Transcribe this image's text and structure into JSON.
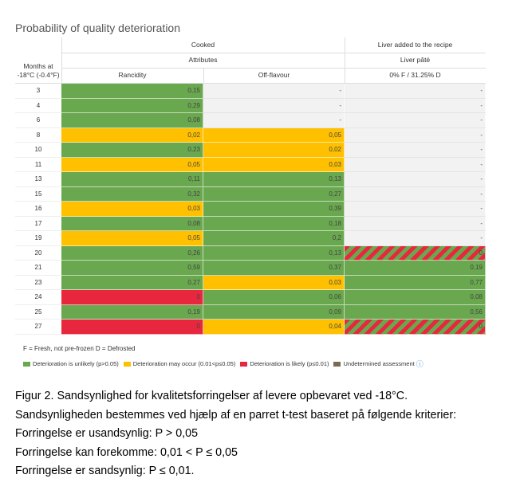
{
  "title": "Probability of quality deterioration",
  "header": {
    "months_label_1": "Months at",
    "months_label_2": "-18°C (-0.4°F)",
    "cooked": "Cooked",
    "attributes": "Attributes",
    "rancidity": "Rancidity",
    "off_flavour": "Off-flavour",
    "liver_added": "Liver added to the recipe",
    "liver_pate": "Liver pâté",
    "liver_pate_sub": "0% F / 31.25% D"
  },
  "colors": {
    "green": "#6aa84f",
    "yellow": "#ffc000",
    "red": "#e8273e",
    "undetermined": "#7a6a4f",
    "empty": "#f2f2f2"
  },
  "rows": [
    {
      "month": "3",
      "r": {
        "v": "0,15",
        "c": "green"
      },
      "o": {
        "v": "-",
        "c": "empty"
      },
      "l": {
        "v": "-",
        "c": "empty"
      }
    },
    {
      "month": "4",
      "r": {
        "v": "0,29",
        "c": "green"
      },
      "o": {
        "v": "-",
        "c": "empty"
      },
      "l": {
        "v": "-",
        "c": "empty"
      }
    },
    {
      "month": "6",
      "r": {
        "v": "0,08",
        "c": "green"
      },
      "o": {
        "v": "-",
        "c": "empty"
      },
      "l": {
        "v": "-",
        "c": "empty"
      }
    },
    {
      "month": "8",
      "r": {
        "v": "0,02",
        "c": "yellow"
      },
      "o": {
        "v": "0,05",
        "c": "yellow"
      },
      "l": {
        "v": "-",
        "c": "empty"
      }
    },
    {
      "month": "10",
      "r": {
        "v": "0,23",
        "c": "green"
      },
      "o": {
        "v": "0,02",
        "c": "yellow"
      },
      "l": {
        "v": "-",
        "c": "empty"
      }
    },
    {
      "month": "11",
      "r": {
        "v": "0,05",
        "c": "yellow"
      },
      "o": {
        "v": "0,03",
        "c": "yellow"
      },
      "l": {
        "v": "-",
        "c": "empty"
      }
    },
    {
      "month": "13",
      "r": {
        "v": "0,11",
        "c": "green"
      },
      "o": {
        "v": "0,13",
        "c": "green"
      },
      "l": {
        "v": "-",
        "c": "empty"
      }
    },
    {
      "month": "15",
      "r": {
        "v": "0,32",
        "c": "green"
      },
      "o": {
        "v": "0,27",
        "c": "green"
      },
      "l": {
        "v": "-",
        "c": "empty"
      }
    },
    {
      "month": "16",
      "r": {
        "v": "0,03",
        "c": "yellow"
      },
      "o": {
        "v": "0,39",
        "c": "green"
      },
      "l": {
        "v": "-",
        "c": "empty"
      }
    },
    {
      "month": "17",
      "r": {
        "v": "0,08",
        "c": "green"
      },
      "o": {
        "v": "0,18",
        "c": "green"
      },
      "l": {
        "v": "-",
        "c": "empty"
      }
    },
    {
      "month": "19",
      "r": {
        "v": "0,05",
        "c": "yellow"
      },
      "o": {
        "v": "0,2",
        "c": "green"
      },
      "l": {
        "v": "-",
        "c": "empty"
      }
    },
    {
      "month": "20",
      "r": {
        "v": "0,26",
        "c": "green"
      },
      "o": {
        "v": "0,13",
        "c": "green"
      },
      "l": {
        "v": "0",
        "c": "striped"
      }
    },
    {
      "month": "21",
      "r": {
        "v": "0,59",
        "c": "green"
      },
      "o": {
        "v": "0,37",
        "c": "green"
      },
      "l": {
        "v": "0,19",
        "c": "green"
      }
    },
    {
      "month": "23",
      "r": {
        "v": "0,27",
        "c": "green"
      },
      "o": {
        "v": "0,03",
        "c": "yellow"
      },
      "l": {
        "v": "0,77",
        "c": "green"
      }
    },
    {
      "month": "24",
      "r": {
        "v": "0",
        "c": "red"
      },
      "o": {
        "v": "0,06",
        "c": "green"
      },
      "l": {
        "v": "0,08",
        "c": "green"
      }
    },
    {
      "month": "25",
      "r": {
        "v": "0,19",
        "c": "green"
      },
      "o": {
        "v": "0,09",
        "c": "green"
      },
      "l": {
        "v": "0,56",
        "c": "green"
      }
    },
    {
      "month": "27",
      "r": {
        "v": "0",
        "c": "red"
      },
      "o": {
        "v": "0,04",
        "c": "yellow"
      },
      "l": {
        "v": "0",
        "c": "striped"
      }
    }
  ],
  "footnote": "F = Fresh, not pre-frozen   D = Defrosted",
  "legend": [
    {
      "label": "Deterioration is unlikely (p>0.05)",
      "color": "#6aa84f"
    },
    {
      "label": "Deterioration may occur (0.01<p≤0.05)",
      "color": "#ffc000"
    },
    {
      "label": "Deterioration is likely (p≤0.01)",
      "color": "#e8273e"
    },
    {
      "label": "Undetermined assessment",
      "color": "#7a6a4f"
    }
  ],
  "info_icon": "ⓘ",
  "caption": [
    "Figur 2. Sandsynlighed for kvalitetsforringelser af levere opbevaret ved -18°C.",
    "Sandsynligheden bestemmes ved hjælp af en parret t-test baseret på følgende kriterier:",
    "Forringelse er usandsynlig: P > 0,05",
    "Forringelse kan forekomme: 0,01 < P ≤ 0,05",
    "Forringelse er sandsynlig: P ≤ 0,01."
  ]
}
